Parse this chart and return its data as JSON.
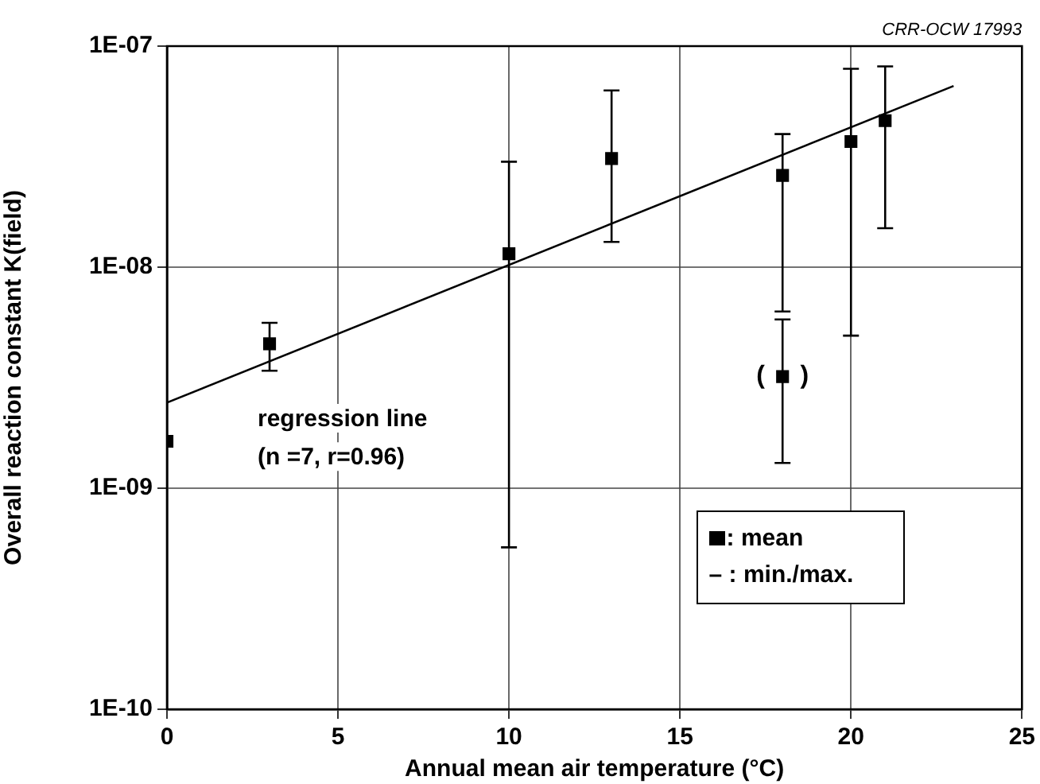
{
  "chart_data": {
    "type": "scatter",
    "xlabel": "Annual mean air temperature (°C)",
    "ylabel": "Overall reaction constant K(field)",
    "x": [
      0,
      3,
      10,
      13,
      18,
      18,
      20,
      21
    ],
    "series": [
      {
        "name": ": mean",
        "marker": "square",
        "color": "#000000",
        "values": [
          1.63e-09,
          4.5e-09,
          1.15e-08,
          3.1e-08,
          2.6e-08,
          3.2e-09,
          3.7e-08,
          4.6e-08
        ],
        "errors": [
          null,
          [
            3.4e-09,
            5.6e-09
          ],
          [
            5.4e-10,
            3e-08
          ],
          [
            1.3e-08,
            6.3e-08
          ],
          [
            6.3e-09,
            4e-08
          ],
          [
            1.3e-09,
            5.8e-09
          ],
          [
            4.9e-09,
            7.9e-08
          ],
          [
            1.5e-08,
            8.1e-08
          ]
        ]
      },
      {
        "type": "line",
        "marker": "none",
        "color": "#000000",
        "x": [
          0,
          23
        ],
        "values": [
          2.44e-09,
          6.6e-08
        ]
      }
    ],
    "xlim": [
      0,
      25
    ],
    "xticks": [
      0,
      5,
      10,
      15,
      20,
      25
    ],
    "ylim": [
      1e-10,
      1e-07
    ],
    "yticks": [
      {
        "value": 1e-10,
        "label": "1E-10"
      },
      {
        "value": 1e-09,
        "label": "1E-09"
      },
      {
        "value": 1e-08,
        "label": "1E-08"
      },
      {
        "value": 1e-07,
        "label": "1E-07"
      }
    ],
    "log": "y",
    "grid": true,
    "line_style": "solid",
    "legend": "bottom right",
    "annotations": [
      "CRR-OCW 17993",
      "regression line",
      "(n =7, r=0.96)",
      "– : min./max.",
      "(     )"
    ]
  }
}
